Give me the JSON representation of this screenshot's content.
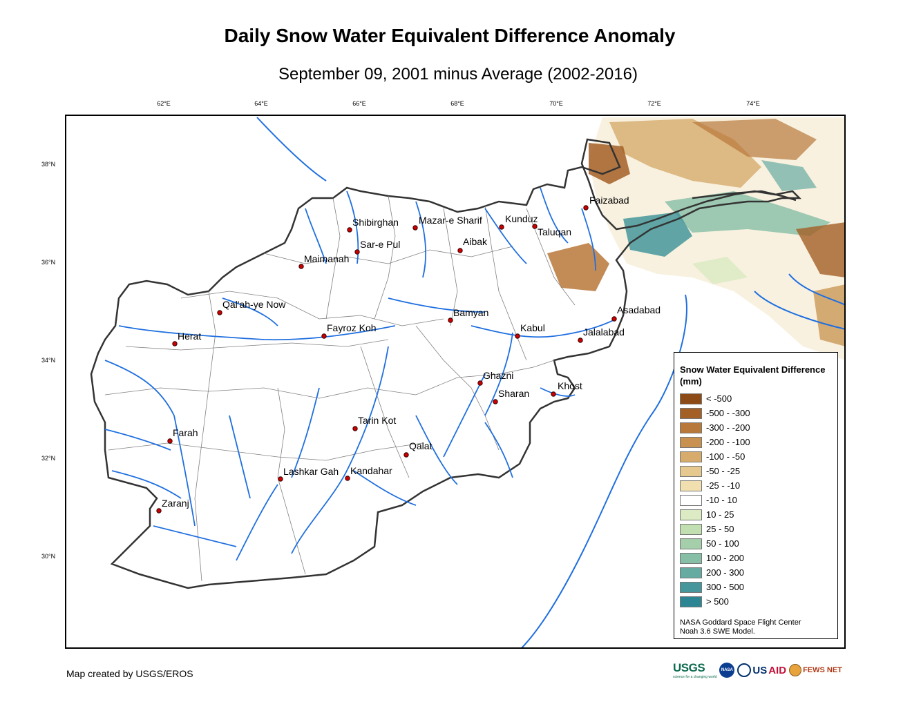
{
  "map": {
    "title": "Daily Snow Water Equivalent Difference Anomaly",
    "subtitle": "September 09, 2001 minus Average (2002-2016)",
    "longitude_labels": [
      "62°E",
      "64°E",
      "66°E",
      "68°E",
      "70°E",
      "72°E",
      "74°E"
    ],
    "latitude_labels": [
      "38°N",
      "36°N",
      "34°N",
      "32°N",
      "30°N"
    ],
    "cities": [
      {
        "name": "Faizabad"
      },
      {
        "name": "Shibirghan"
      },
      {
        "name": "Mazar-e Sharif"
      },
      {
        "name": "Kunduz"
      },
      {
        "name": "Taluqan"
      },
      {
        "name": "Sar-e Pul"
      },
      {
        "name": "Aibak"
      },
      {
        "name": "Maimanah"
      },
      {
        "name": "Qal'ah-ye Now"
      },
      {
        "name": "Bamyan"
      },
      {
        "name": "Asadabad"
      },
      {
        "name": "Kabul"
      },
      {
        "name": "Jalalabad"
      },
      {
        "name": "Fayroz Koh"
      },
      {
        "name": "Herat"
      },
      {
        "name": "Ghazni"
      },
      {
        "name": "Khost"
      },
      {
        "name": "Sharan"
      },
      {
        "name": "Tarin Kot"
      },
      {
        "name": "Farah"
      },
      {
        "name": "Qalat"
      },
      {
        "name": "Lashkar Gah"
      },
      {
        "name": "Kandahar"
      },
      {
        "name": "Zaranj"
      }
    ],
    "colors": {
      "river": "#1f6fe0",
      "border": "#333333",
      "province": "#808080",
      "city_marker": "#cc0000"
    }
  },
  "legend": {
    "title": "Snow Water Equivalent Difference (mm)",
    "items": [
      {
        "label": "< -500",
        "color": "#8c4b16"
      },
      {
        "label": "-500 - -300",
        "color": "#a35f26"
      },
      {
        "label": "-300 - -200",
        "color": "#b8783a"
      },
      {
        "label": "-200 - -100",
        "color": "#c8914f"
      },
      {
        "label": "-100 - -50",
        "color": "#d6ab6c"
      },
      {
        "label": "-50 - -25",
        "color": "#e5c98f"
      },
      {
        "label": "-25 - -10",
        "color": "#f2dfb0"
      },
      {
        "label": "-10 - 10",
        "color": "#ffffff"
      },
      {
        "label": "10 - 25",
        "color": "#dcebc4"
      },
      {
        "label": "25 - 50",
        "color": "#c2dfb2"
      },
      {
        "label": "50 - 100",
        "color": "#a4cfaa"
      },
      {
        "label": "100 - 200",
        "color": "#86bea6"
      },
      {
        "label": "200 - 300",
        "color": "#66aba2"
      },
      {
        "label": "300 - 500",
        "color": "#45979b"
      },
      {
        "label": "> 500",
        "color": "#2b8592"
      }
    ],
    "credit_line1": "NASA Goddard Space Flight Center",
    "credit_line2": "Noah 3.6 SWE Model."
  },
  "footer": {
    "credit": "Map created by USGS/EROS",
    "logos": {
      "usgs": "USGS",
      "usgs_tagline": "science for a changing world",
      "nasa": "NASA",
      "usaid_us": "US",
      "usaid_aid": "AID",
      "fews": "FEWS NET"
    }
  }
}
